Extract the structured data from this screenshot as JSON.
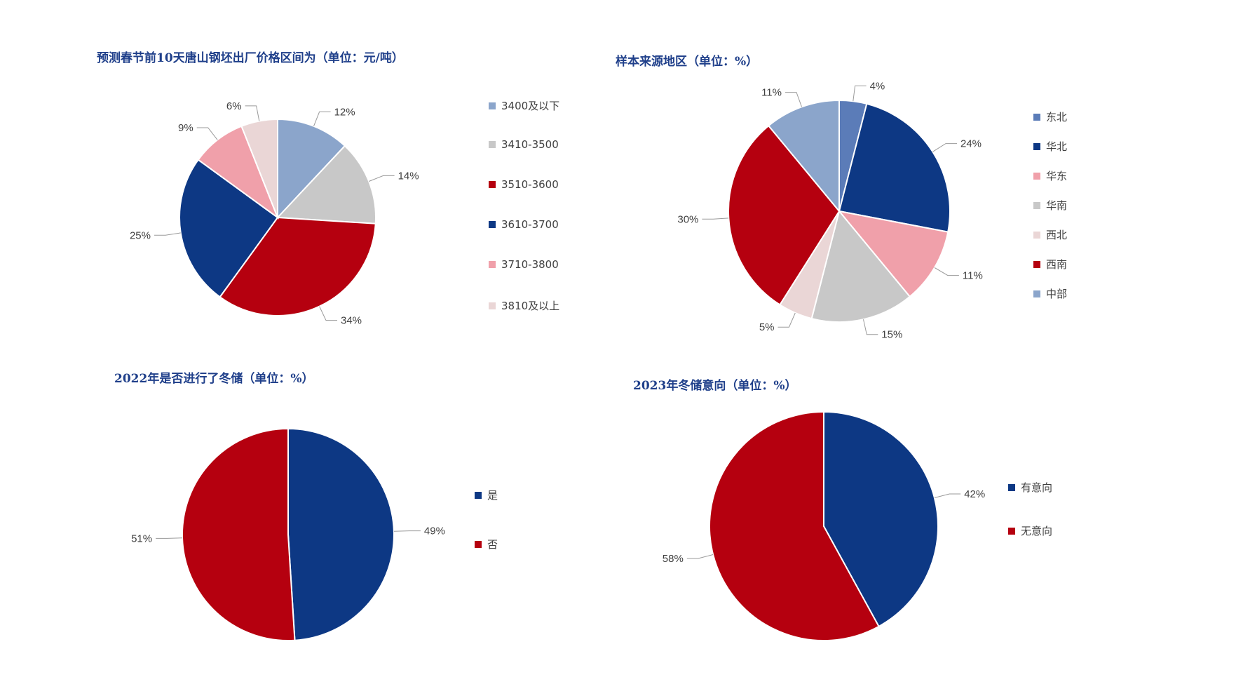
{
  "chart_data": [
    {
      "type": "pie",
      "title": "预测春节前10天唐山钢坯出厂价格区间为（单位：元/吨）",
      "categories": [
        "3400及以下",
        "3410-3500",
        "3510-3600",
        "3610-3700",
        "3710-3800",
        "3810及以上"
      ],
      "values": [
        12,
        14,
        34,
        25,
        9,
        6
      ],
      "value_labels": [
        "12%",
        "14%",
        "34%",
        "25%",
        "9%",
        "6%"
      ],
      "colors": [
        "#8ba5cb",
        "#c8c8c8",
        "#b5000f",
        "#0d3884",
        "#f0a0aa",
        "#ead6d6"
      ],
      "legend_position": "right"
    },
    {
      "type": "pie",
      "title": "样本来源地区（单位：%）",
      "categories": [
        "东北",
        "华北",
        "华东",
        "华南",
        "西北",
        "西南",
        "中部"
      ],
      "values": [
        4,
        24,
        11,
        15,
        5,
        30,
        11
      ],
      "value_labels": [
        "4%",
        "24%",
        "11%",
        "15%",
        "5%",
        "30%",
        "11%"
      ],
      "colors": [
        "#5b7cb8",
        "#0d3884",
        "#f0a0aa",
        "#c8c8c8",
        "#ead6d6",
        "#b5000f",
        "#8ba5cb"
      ],
      "legend_position": "right"
    },
    {
      "type": "pie",
      "title": "2022年是否进行了冬储（单位：%）",
      "categories": [
        "是",
        "否"
      ],
      "values": [
        49,
        51
      ],
      "value_labels": [
        "49%",
        "51%"
      ],
      "colors": [
        "#0d3884",
        "#b5000f"
      ],
      "legend_position": "right"
    },
    {
      "type": "pie",
      "title": "2023年冬储意向（单位：%）",
      "categories": [
        "有意向",
        "无意向"
      ],
      "values": [
        42,
        58
      ],
      "value_labels": [
        "42%",
        "58%"
      ],
      "colors": [
        "#0d3884",
        "#b5000f"
      ],
      "legend_position": "right"
    }
  ]
}
